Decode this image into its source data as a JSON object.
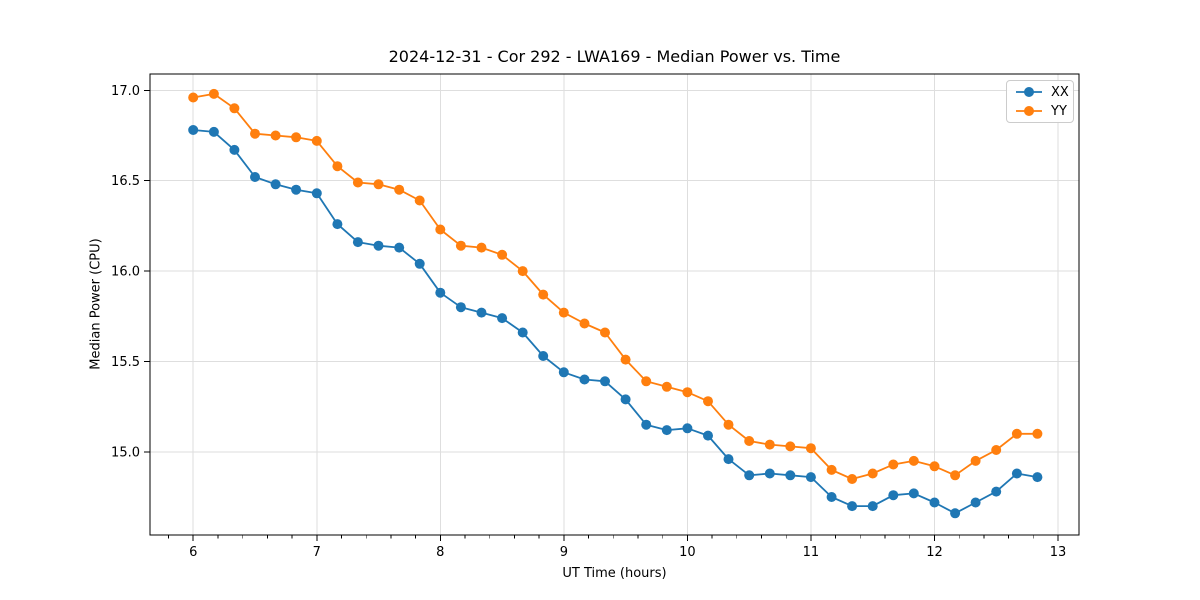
{
  "title": "2024-12-31 - Cor 292 - LWA169 - Median Power vs. Time",
  "chart_data": {
    "type": "line",
    "title": "2024-12-31 - Cor 292 - LWA169 - Median Power vs. Time",
    "xlabel": "UT Time (hours)",
    "ylabel": "Median Power (CPU)",
    "xlim": [
      5.65,
      13.17
    ],
    "ylim": [
      14.54,
      17.09
    ],
    "x_ticks": [
      6,
      7,
      8,
      9,
      10,
      11,
      12,
      13
    ],
    "x_tick_labels": [
      "6",
      "7",
      "8",
      "9",
      "10",
      "11",
      "12",
      "13"
    ],
    "x_minor_tick_step": 0.2,
    "y_ticks": [
      17.0,
      16.5,
      16.0,
      15.5,
      15.0
    ],
    "y_tick_labels": [
      "17.0",
      "16.5",
      "16.0",
      "15.5",
      "15.0"
    ],
    "grid": true,
    "legend_position": "upper right",
    "marker": "circle",
    "x": [
      6.0,
      6.167,
      6.333,
      6.5,
      6.667,
      6.833,
      7.0,
      7.167,
      7.333,
      7.5,
      7.667,
      7.833,
      8.0,
      8.167,
      8.333,
      8.5,
      8.667,
      8.833,
      9.0,
      9.167,
      9.333,
      9.5,
      9.667,
      9.833,
      10.0,
      10.167,
      10.333,
      10.5,
      10.667,
      10.833,
      11.0,
      11.167,
      11.333,
      11.5,
      11.667,
      11.833,
      12.0,
      12.167,
      12.333,
      12.5,
      12.667,
      12.833
    ],
    "series": [
      {
        "name": "XX",
        "color": "#1f77b4",
        "values": [
          16.78,
          16.77,
          16.67,
          16.52,
          16.48,
          16.45,
          16.43,
          16.26,
          16.16,
          16.14,
          16.13,
          16.04,
          15.88,
          15.8,
          15.77,
          15.74,
          15.66,
          15.53,
          15.44,
          15.4,
          15.39,
          15.29,
          15.15,
          15.12,
          15.13,
          15.09,
          14.96,
          14.87,
          14.88,
          14.87,
          14.86,
          14.75,
          14.7,
          14.7,
          14.76,
          14.77,
          14.72,
          14.66,
          14.72,
          14.78,
          14.88,
          14.86
        ]
      },
      {
        "name": "YY",
        "color": "#ff7f0e",
        "values": [
          16.96,
          16.98,
          16.9,
          16.76,
          16.75,
          16.74,
          16.72,
          16.58,
          16.49,
          16.48,
          16.45,
          16.39,
          16.23,
          16.14,
          16.13,
          16.09,
          16.0,
          15.87,
          15.77,
          15.71,
          15.66,
          15.51,
          15.39,
          15.36,
          15.33,
          15.28,
          15.15,
          15.06,
          15.04,
          15.03,
          15.02,
          14.9,
          14.85,
          14.88,
          14.93,
          14.95,
          14.92,
          14.87,
          14.95,
          15.01,
          15.1,
          15.1
        ]
      }
    ],
    "style": {
      "grid_color": "#dedede",
      "spine_color": "#000000",
      "tick_color": "#000000",
      "background": "#ffffff"
    }
  }
}
